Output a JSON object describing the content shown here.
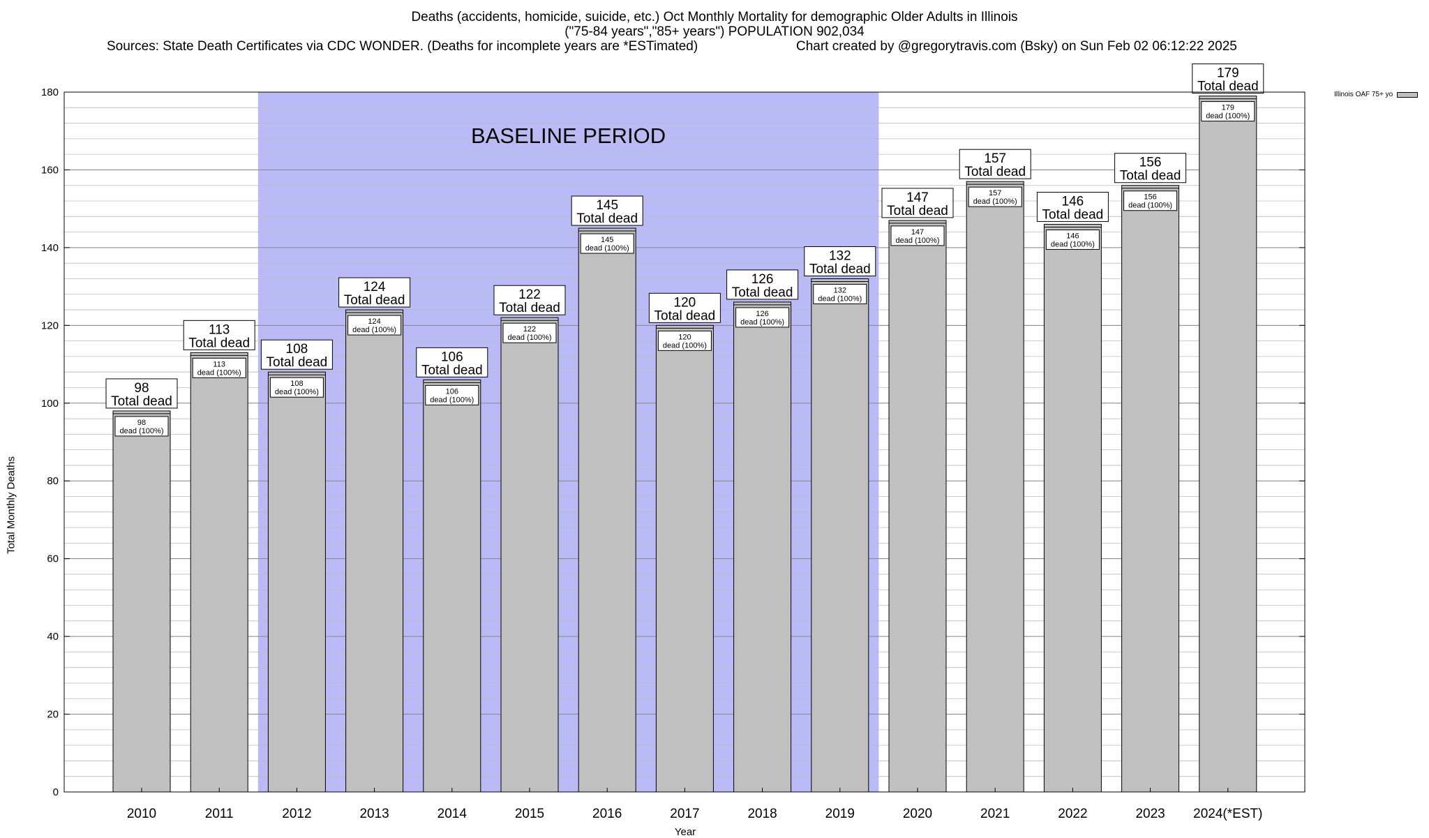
{
  "chart_data": {
    "type": "bar",
    "title": "Deaths (accidents, homicide, suicide, etc.) Oct Monthly Mortality for demographic Older Adults in Illinois",
    "subtitle": "(\"75-84 years\",\"85+ years\") POPULATION 902,034",
    "source": "Sources: State Death Certificates via CDC WONDER. (Deaths for incomplete years are *ESTimated)",
    "credit": "Chart created by @gregorytravis.com (Bsky) on Sun Feb 02 06:12:22 2025",
    "xlabel": "Year",
    "ylabel": "Total Monthly Deaths",
    "ylim": [
      0,
      180
    ],
    "yticks": [
      0,
      20,
      40,
      60,
      80,
      100,
      120,
      140,
      160,
      180
    ],
    "categories": [
      "2010",
      "2011",
      "2012",
      "2013",
      "2014",
      "2015",
      "2016",
      "2017",
      "2018",
      "2019",
      "2020",
      "2021",
      "2022",
      "2023",
      "2024(*EST)"
    ],
    "series": [
      {
        "name": "Illinois OAF 75+ yo",
        "values": [
          98,
          113,
          108,
          124,
          106,
          122,
          145,
          120,
          126,
          132,
          147,
          157,
          146,
          156,
          179
        ]
      }
    ],
    "total_label": "Total dead",
    "inner_label": "dead (100%)",
    "baseline": {
      "label": "BASELINE PERIOD",
      "from": "2012",
      "to": "2019"
    },
    "grid": true,
    "legend_position": "top-right",
    "colors": {
      "bar": "#c0c0c0",
      "baseline_band": "#babaf7",
      "grid": "#bbbbbb"
    }
  }
}
